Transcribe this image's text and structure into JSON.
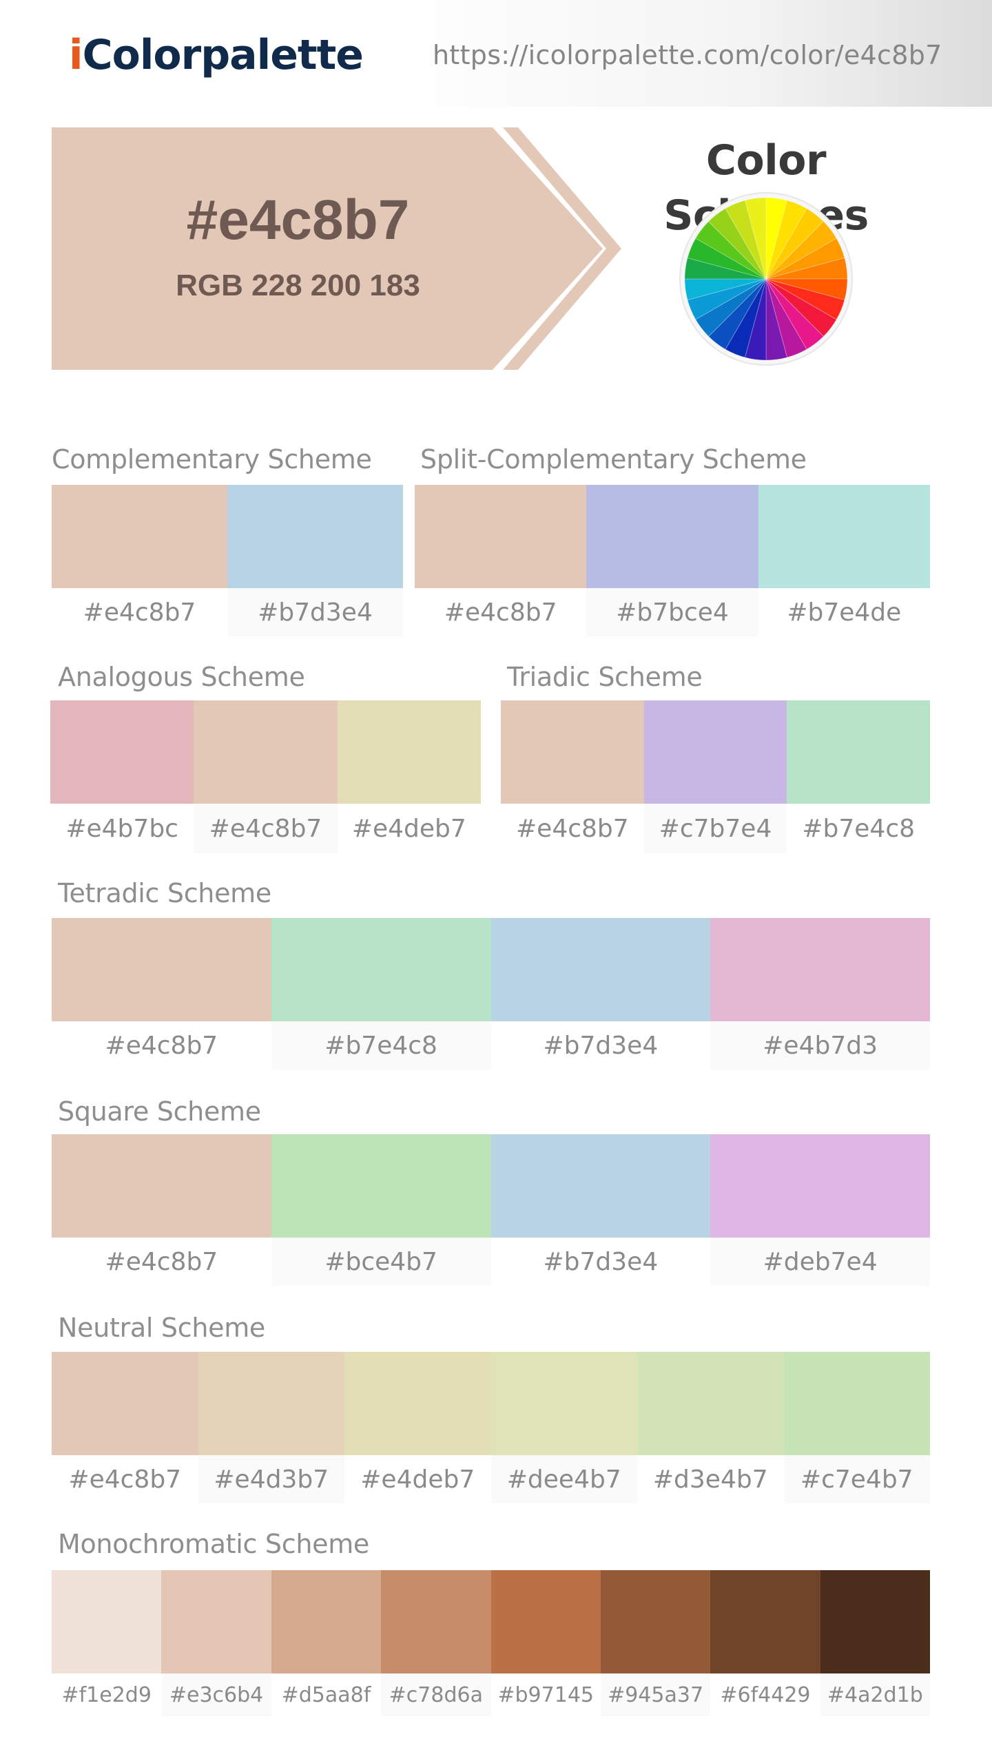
{
  "header": {
    "logo_first": "i",
    "logo_rest": "Colorpalette",
    "url": "https://icolorpalette.com/color/e4c8b7"
  },
  "hero": {
    "hex": "#e4c8b7",
    "rgb": "RGB 228 200 183",
    "color": "#e4c8b7"
  },
  "color_schemes_title": "Color Schemes",
  "color_wheel_icon": "color-wheel-icon",
  "schemes": {
    "complementary": {
      "title": "Complementary Scheme",
      "colors": [
        {
          "hex": "#e4c8b7",
          "color": "#e4c8b7"
        },
        {
          "hex": "#b7d3e4",
          "color": "#b7d3e4"
        }
      ]
    },
    "split_complementary": {
      "title": "Split-Complementary Scheme",
      "colors": [
        {
          "hex": "#e4c8b7",
          "color": "#e4c8b7"
        },
        {
          "hex": "#b7bce4",
          "color": "#b7bce4"
        },
        {
          "hex": "#b7e4de",
          "color": "#b7e4de"
        }
      ]
    },
    "analogous": {
      "title": "Analogous Scheme",
      "colors": [
        {
          "hex": "#e4b7bc",
          "color": "#e4b7bc"
        },
        {
          "hex": "#e4c8b7",
          "color": "#e4c8b7"
        },
        {
          "hex": "#e4deb7",
          "color": "#e4deb7"
        }
      ]
    },
    "triadic": {
      "title": "Triadic Scheme",
      "colors": [
        {
          "hex": "#e4c8b7",
          "color": "#e4c8b7"
        },
        {
          "hex": "#c7b7e4",
          "color": "#c7b7e4"
        },
        {
          "hex": "#b7e4c8",
          "color": "#b7e4c8"
        }
      ]
    },
    "tetradic": {
      "title": "Tetradic Scheme",
      "colors": [
        {
          "hex": "#e4c8b7",
          "color": "#e4c8b7"
        },
        {
          "hex": "#b7e4c8",
          "color": "#b7e4c8"
        },
        {
          "hex": "#b7d3e4",
          "color": "#b7d3e4"
        },
        {
          "hex": "#e4b7d3",
          "color": "#e4b7d3"
        }
      ]
    },
    "square": {
      "title": "Square Scheme",
      "colors": [
        {
          "hex": "#e4c8b7",
          "color": "#e4c8b7"
        },
        {
          "hex": "#bce4b7",
          "color": "#bce4b7"
        },
        {
          "hex": "#b7d3e4",
          "color": "#b7d3e4"
        },
        {
          "hex": "#deb7e4",
          "color": "#deb7e4"
        }
      ]
    },
    "neutral": {
      "title": "Neutral Scheme",
      "colors": [
        {
          "hex": "#e4c8b7",
          "color": "#e4c8b7"
        },
        {
          "hex": "#e4d3b7",
          "color": "#e4d3b7"
        },
        {
          "hex": "#e4deb7",
          "color": "#e4deb7"
        },
        {
          "hex": "#dee4b7",
          "color": "#dee4b7"
        },
        {
          "hex": "#d3e4b7",
          "color": "#d3e4b7"
        },
        {
          "hex": "#c7e4b7",
          "color": "#c7e4b7"
        }
      ]
    },
    "monochromatic": {
      "title": "Monochromatic Scheme",
      "colors": [
        {
          "hex": "#f1e2d9",
          "color": "#f1e2d9"
        },
        {
          "hex": "#e3c6b4",
          "color": "#e3c6b4"
        },
        {
          "hex": "#d5aa8f",
          "color": "#d5aa8f"
        },
        {
          "hex": "#c78d6a",
          "color": "#c78d6a"
        },
        {
          "hex": "#b97145",
          "color": "#b97145"
        },
        {
          "hex": "#945a37",
          "color": "#945a37"
        },
        {
          "hex": "#6f4429",
          "color": "#6f4429"
        },
        {
          "hex": "#4a2d1b",
          "color": "#4a2d1b"
        }
      ]
    }
  }
}
